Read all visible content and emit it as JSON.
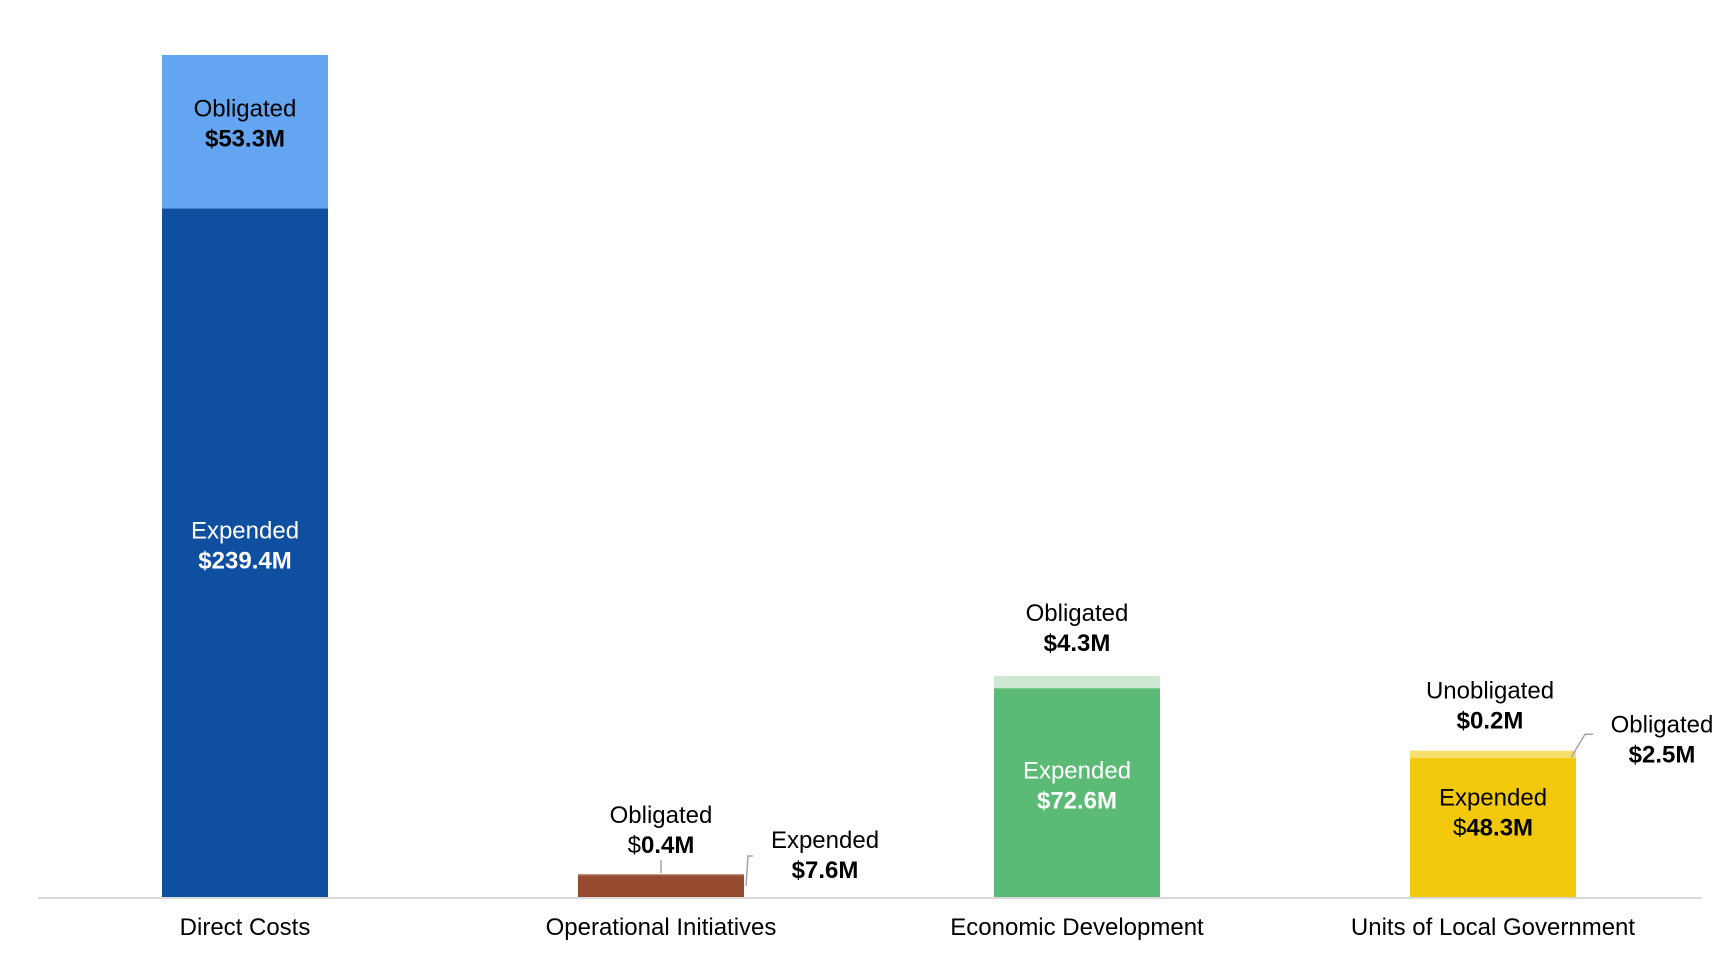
{
  "chart_data": {
    "type": "bar",
    "stacked": true,
    "categories": [
      "Direct Costs",
      "Operational Initiatives",
      "Economic Development",
      "Units of Local Government"
    ],
    "series": [
      {
        "name": "Expended",
        "values": [
          239.4,
          7.6,
          72.6,
          48.3
        ]
      },
      {
        "name": "Obligated",
        "values": [
          53.3,
          0.4,
          4.3,
          2.5
        ]
      },
      {
        "name": "Unobligated",
        "values": [
          0,
          0,
          0,
          0.2
        ]
      }
    ],
    "colors": {
      "expended": [
        "#0f4fa0",
        "#964b31",
        "#5bbb76",
        "#f2c90a"
      ],
      "obligated": [
        "#64a5f1",
        "#c18d7a",
        "#cde9d3",
        "#f7df6e"
      ],
      "unobligated": [
        "#ffffff",
        "#ffffff",
        "#ffffff",
        "#fbeeb0"
      ]
    },
    "labels": [
      {
        "segment": "obligated",
        "bar": 0,
        "word": "Obligated",
        "value": "$53.3M"
      },
      {
        "segment": "expended",
        "bar": 0,
        "word": "Expended",
        "value": "$239.4M"
      },
      {
        "segment": "obligated",
        "bar": 1,
        "word": "Obligated",
        "value_prefix": "$",
        "value_num": "0.4M"
      },
      {
        "segment": "expended",
        "bar": 1,
        "word": "Expended",
        "value": "$7.6M"
      },
      {
        "segment": "obligated",
        "bar": 2,
        "word": "Obligated",
        "value": "$4.3M"
      },
      {
        "segment": "expended",
        "bar": 2,
        "word": "Expended",
        "value": "$72.6M"
      },
      {
        "segment": "unobligated",
        "bar": 3,
        "word": "Unobligated",
        "value": "$0.2M"
      },
      {
        "segment": "obligated",
        "bar": 3,
        "word": "Obligated",
        "value": "$2.5M"
      },
      {
        "segment": "expended",
        "bar": 3,
        "word": "Expended",
        "value_prefix": "$",
        "value_num": "48.3M"
      }
    ],
    "ylim": [
      0,
      292.7
    ],
    "grid": false,
    "legend": false,
    "xlabel": "",
    "ylabel": ""
  }
}
